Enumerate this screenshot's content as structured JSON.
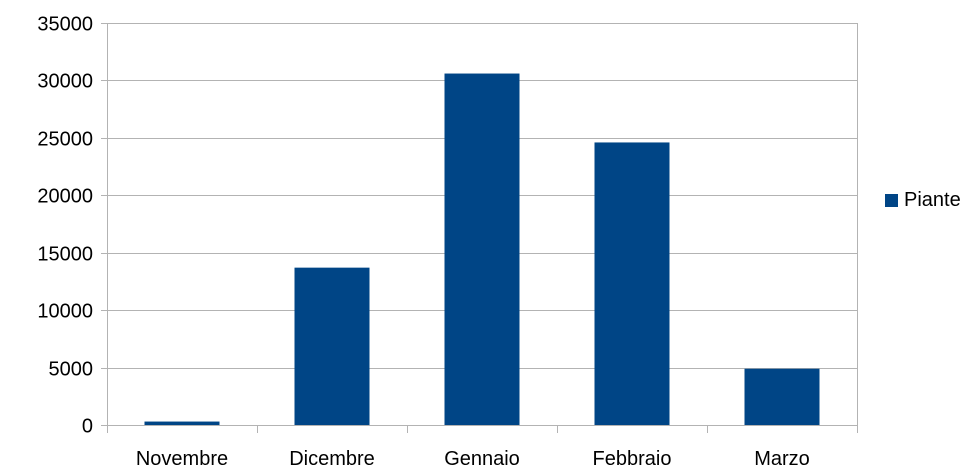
{
  "chart_data": {
    "type": "bar",
    "categories": [
      "Novembre",
      "Dicembre",
      "Gennaio",
      "Febbraio",
      "Marzo"
    ],
    "series": [
      {
        "name": "Piante",
        "color": "#004586",
        "values": [
          300,
          13700,
          30600,
          24600,
          4900
        ]
      }
    ],
    "ylim": [
      0,
      35000
    ],
    "yticks": [
      0,
      5000,
      10000,
      15000,
      20000,
      25000,
      30000,
      35000
    ],
    "grid": true,
    "legend": "right",
    "title": "",
    "xlabel": "",
    "ylabel": ""
  }
}
